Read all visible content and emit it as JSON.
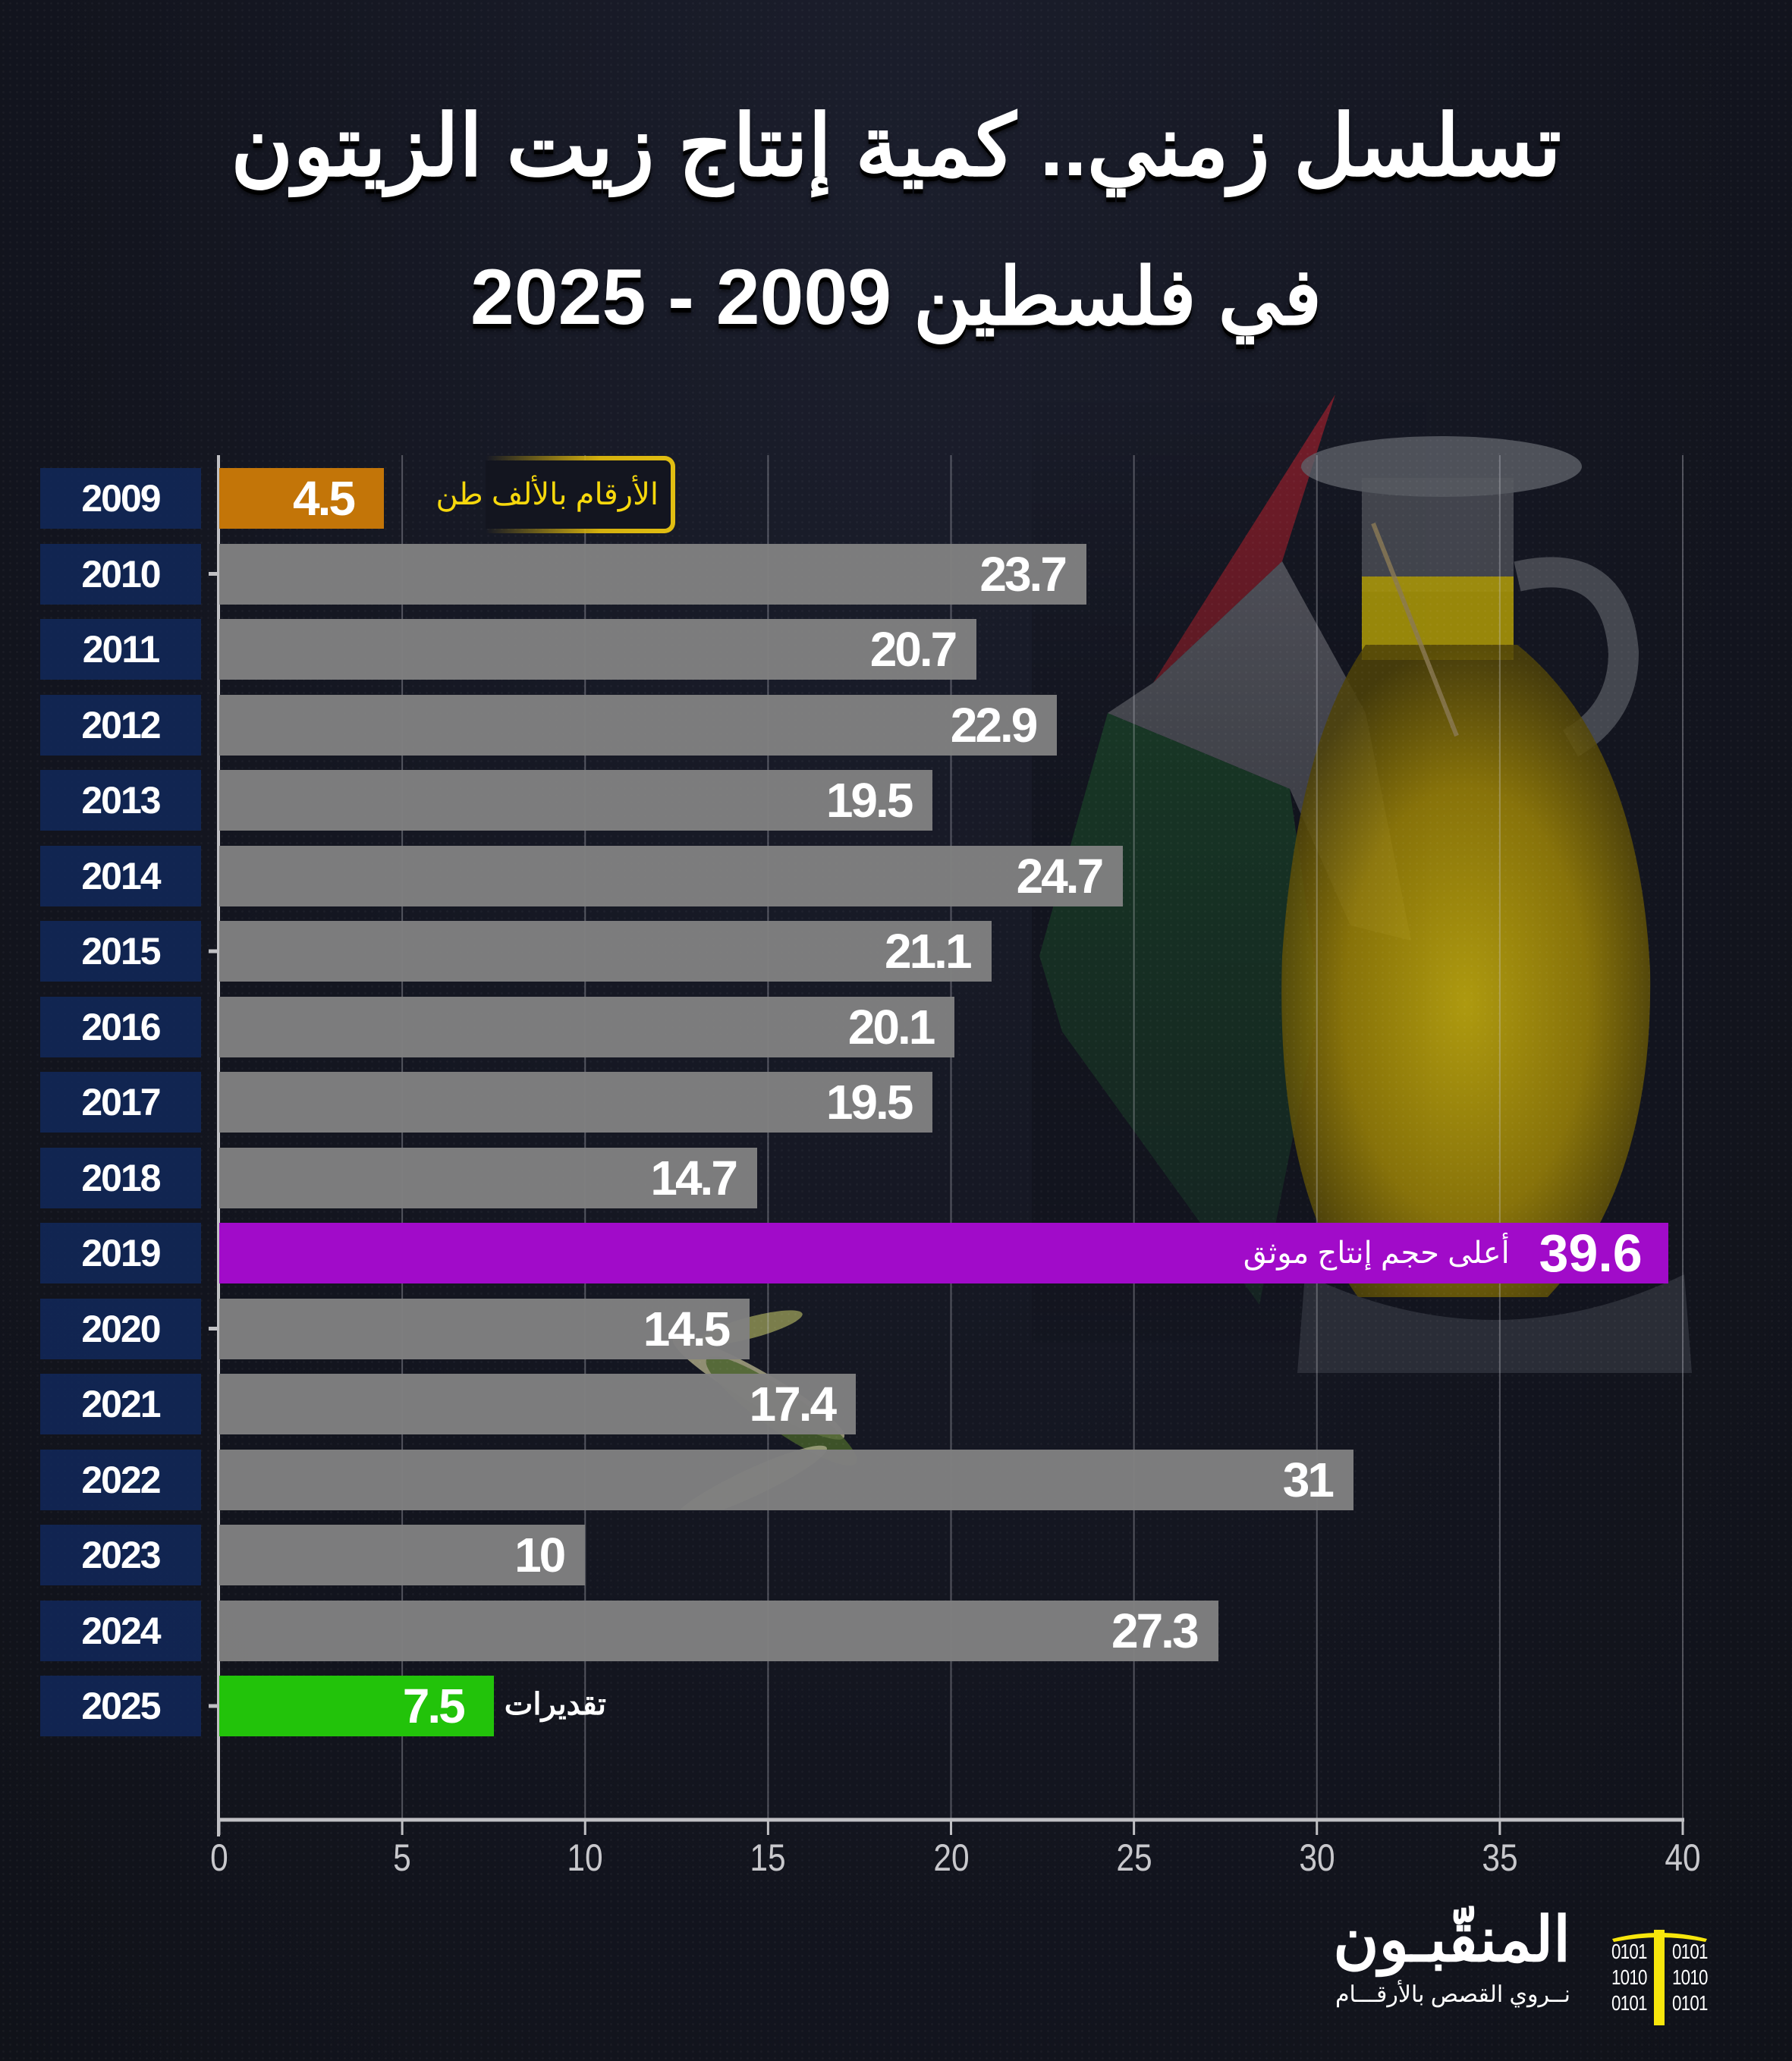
{
  "title": {
    "line1": "تسلسل زمني.. كمية إنتاج زيت الزيتون",
    "line2": "في فلسطين 2009 - 2025"
  },
  "colors": {
    "background": "#13151f",
    "year_box": "#12285a",
    "bar_default": "#808080",
    "bar_2009": "#c37508",
    "bar_2019": "#a10bc9",
    "bar_2025": "#22c30a",
    "note_text": "#f7d80c",
    "axis": "#c8c8cc"
  },
  "notes": {
    "units": "الأرقام بالألف طن",
    "highest": "أعلى حجم إنتاج موثق",
    "estimate": "تقديرات"
  },
  "chart_data": {
    "type": "bar",
    "orientation": "horizontal",
    "title": "تسلسل زمني.. كمية إنتاج زيت الزيتون في فلسطين 2009 - 2025",
    "xlabel": "",
    "ylabel": "",
    "unit": "الأرقام بالألف طن",
    "categories": [
      "2009",
      "2010",
      "2011",
      "2012",
      "2013",
      "2014",
      "2015",
      "2016",
      "2017",
      "2018",
      "2019",
      "2020",
      "2021",
      "2022",
      "2023",
      "2024",
      "2025"
    ],
    "values": [
      4.5,
      23.7,
      20.7,
      22.9,
      19.5,
      24.7,
      21.1,
      20.1,
      19.5,
      14.7,
      39.6,
      14.5,
      17.4,
      31,
      10,
      27.3,
      7.5
    ],
    "value_labels": [
      "4.5",
      "23.7",
      "20.7",
      "22.9",
      "19.5",
      "24.7",
      "21.1",
      "20.1",
      "19.5",
      "14.7",
      "39.6",
      "14.5",
      "17.4",
      "31",
      "10",
      "27.3",
      "7.5"
    ],
    "highlights": {
      "2009": "orange",
      "2019": "purple",
      "2025": "green"
    },
    "annotations": [
      {
        "category": "2009",
        "text": "الأرقام بالألف طن"
      },
      {
        "category": "2019",
        "text": "أعلى حجم إنتاج موثق"
      },
      {
        "category": "2025",
        "text": "تقديرات"
      }
    ],
    "xlim": [
      0,
      40
    ],
    "xticks": [
      0,
      5,
      10,
      15,
      20,
      25,
      30,
      35,
      40
    ],
    "xtick_labels": [
      "0",
      "5",
      "10",
      "15",
      "20",
      "25",
      "30",
      "35",
      "40"
    ],
    "grid": true
  },
  "logo": {
    "name": "المنقّبـون",
    "tagline": "نــروي القصص بالأرقـــام",
    "binary_rows": [
      "0101",
      "1010",
      "0101"
    ],
    "icon": "pickaxe-icon"
  }
}
